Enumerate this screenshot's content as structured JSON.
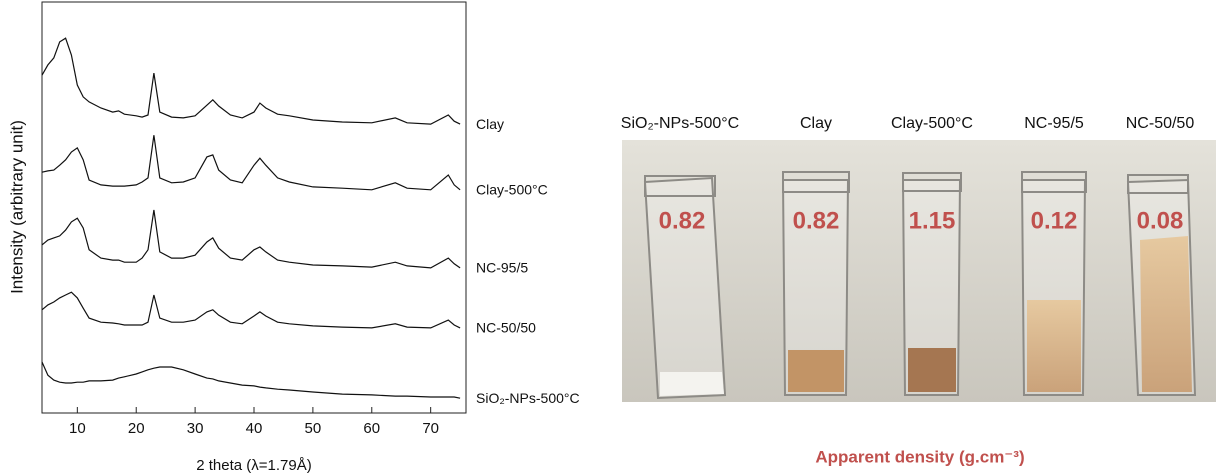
{
  "chart_data": {
    "type": "line",
    "xlabel": "2 theta (λ=1.79Å)",
    "ylabel": "Intensity (arbitrary unit)",
    "xlim": [
      4,
      76
    ],
    "ylim": [
      0,
      100
    ],
    "xticks": [
      10,
      20,
      30,
      40,
      50,
      60,
      70
    ],
    "x": [
      4,
      5,
      6,
      7,
      8,
      9,
      10,
      11,
      12,
      14,
      16,
      17,
      18,
      20,
      21,
      22,
      23,
      24,
      26,
      28,
      30,
      32,
      33,
      34,
      36,
      38,
      40,
      41,
      42,
      44,
      46,
      50,
      55,
      60,
      64,
      66,
      70,
      73,
      74,
      75
    ],
    "series": [
      {
        "name": "Clay",
        "color": "#111111",
        "values": [
          82.2,
          84.7,
          86.4,
          90.3,
          91.2,
          87.1,
          79.8,
          76.9,
          75.7,
          74.2,
          73.2,
          73.5,
          72.7,
          72.3,
          72.0,
          72.5,
          82.7,
          73.2,
          72.0,
          71.8,
          72.3,
          74.9,
          76.2,
          74.7,
          72.5,
          71.8,
          73.2,
          75.4,
          74.2,
          72.7,
          72.3,
          71.3,
          70.8,
          70.6,
          71.8,
          70.6,
          70.3,
          72.5,
          71.0,
          70.3
        ]
      },
      {
        "name": "Clay-500°C",
        "color": "#111111",
        "values": [
          58.6,
          58.9,
          59.1,
          60.3,
          61.6,
          63.5,
          64.5,
          61.6,
          56.7,
          55.5,
          55.2,
          55.2,
          55.2,
          55.5,
          56.2,
          57.2,
          67.6,
          57.2,
          56.0,
          56.2,
          57.2,
          62.3,
          62.8,
          59.1,
          56.7,
          56.0,
          60.3,
          62.0,
          60.3,
          57.2,
          56.2,
          55.0,
          54.7,
          54.3,
          56.0,
          54.7,
          54.3,
          57.9,
          55.5,
          54.3
        ]
      },
      {
        "name": "NC-95/5",
        "color": "#111111",
        "values": [
          40.9,
          42.1,
          42.6,
          43.1,
          44.5,
          46.5,
          47.4,
          45.0,
          39.7,
          37.7,
          37.2,
          37.2,
          36.7,
          36.7,
          37.7,
          39.7,
          49.4,
          39.2,
          37.7,
          37.7,
          38.4,
          41.6,
          42.6,
          40.1,
          37.7,
          37.2,
          39.7,
          40.4,
          39.2,
          37.2,
          36.7,
          36.0,
          35.8,
          35.5,
          36.7,
          35.8,
          35.3,
          37.7,
          36.3,
          35.3
        ]
      },
      {
        "name": "NC-50/50",
        "color": "#111111",
        "values": [
          25.1,
          26.3,
          27.0,
          28.0,
          28.7,
          29.4,
          28.0,
          25.5,
          23.1,
          22.1,
          21.9,
          21.7,
          21.4,
          21.4,
          21.4,
          22.1,
          28.7,
          23.1,
          22.1,
          22.1,
          22.6,
          24.6,
          25.1,
          23.8,
          22.1,
          21.7,
          23.6,
          24.6,
          23.6,
          22.1,
          21.7,
          21.2,
          20.9,
          20.7,
          21.7,
          20.9,
          20.7,
          22.6,
          21.4,
          20.7
        ]
      },
      {
        "name": "SiO₂-NPs-500°C",
        "color": "#111111",
        "values": [
          12.4,
          9.2,
          8.0,
          7.5,
          7.3,
          7.3,
          7.5,
          7.5,
          7.8,
          7.8,
          8.0,
          8.5,
          8.8,
          9.5,
          10.0,
          10.5,
          10.9,
          11.2,
          11.2,
          10.5,
          9.5,
          8.5,
          8.3,
          7.8,
          7.3,
          6.8,
          6.6,
          6.3,
          6.1,
          5.8,
          5.6,
          5.1,
          4.6,
          4.4,
          4.1,
          4.1,
          3.9,
          3.9,
          3.9,
          3.6
        ]
      }
    ]
  },
  "photo": {
    "labels": [
      "SiO₂-NPs-500°C",
      "Clay",
      "Clay-500°C",
      "NC-95/5",
      "NC-50/50"
    ],
    "densities": [
      0.82,
      0.82,
      1.15,
      0.12,
      0.08
    ],
    "caption": "Apparent density (g.cm⁻³)"
  }
}
